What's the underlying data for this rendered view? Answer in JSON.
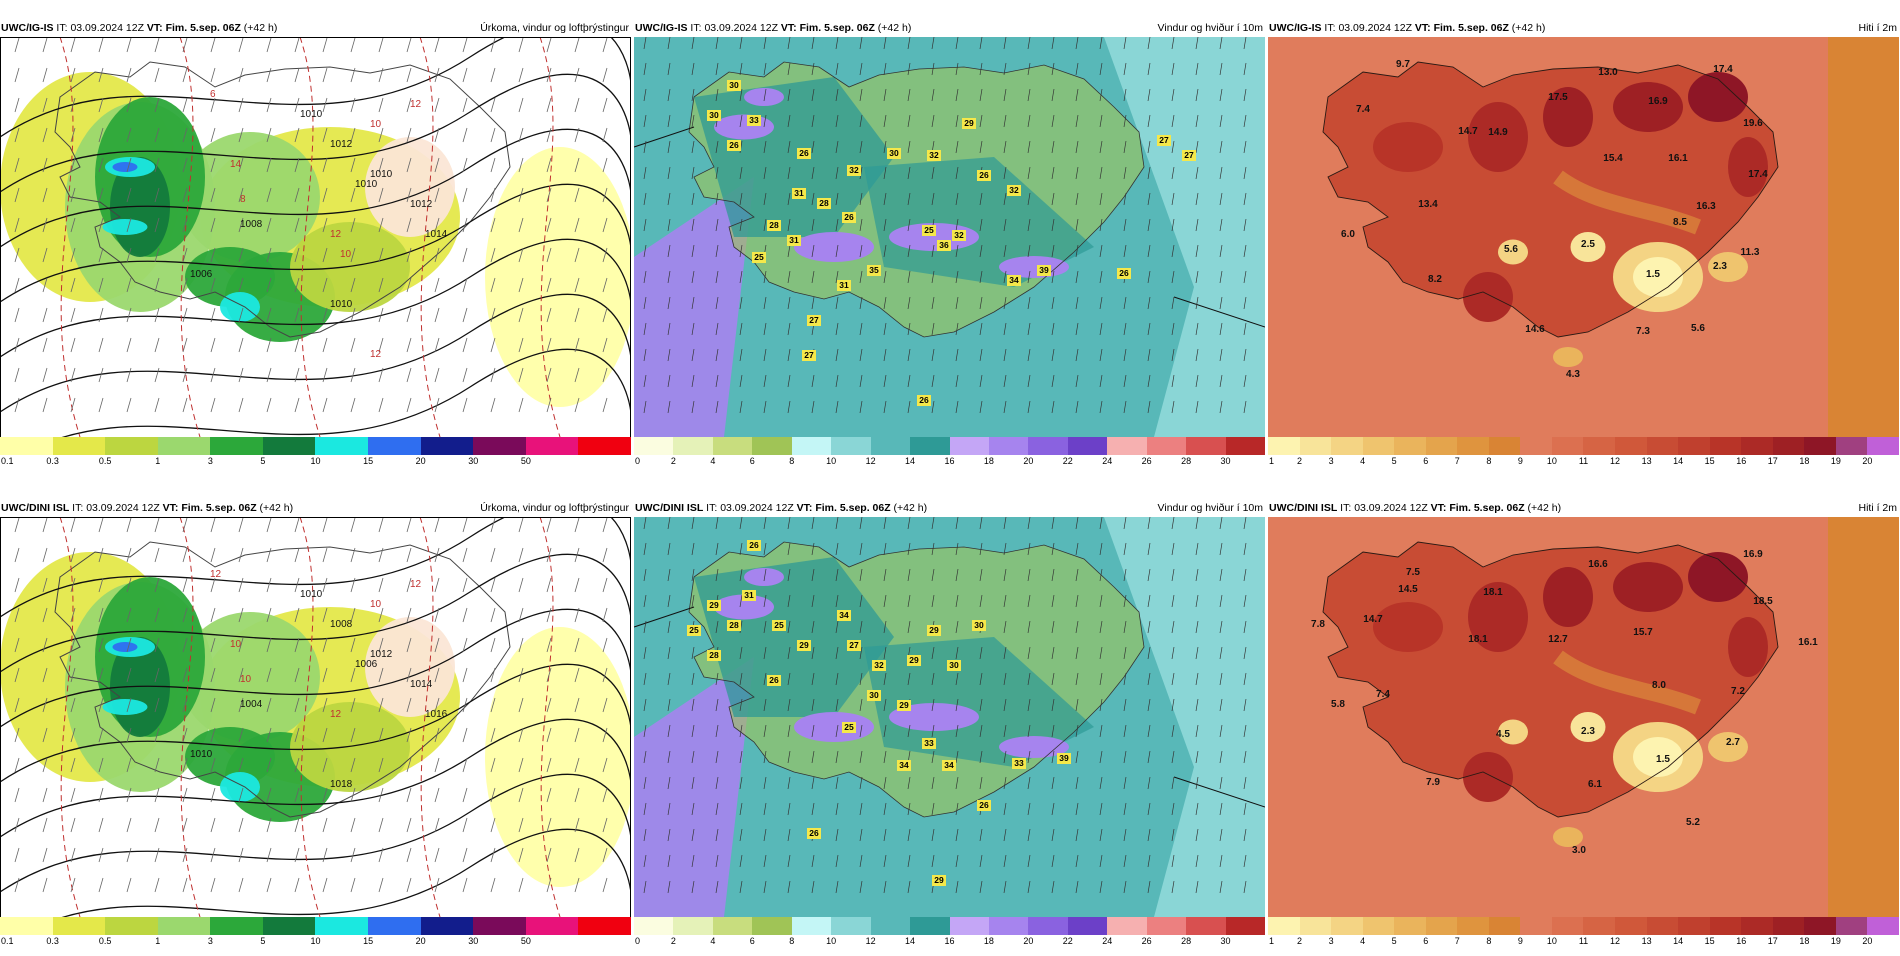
{
  "panels": [
    {
      "id": "p1",
      "model": "UWC/IG-IS",
      "it_label": "IT:",
      "it_value": "03.09.2024 12Z",
      "vt_label": "VT:",
      "vt_value": "Fim. 5.sep. 06Z",
      "lead": "(+42 h)",
      "variable": "Úrkoma, vindur og loftþrýstingur",
      "legend_ticks": [
        "0.1",
        "0.3",
        "0.5",
        "1",
        "3",
        "5",
        "10",
        "15",
        "20",
        "30",
        "50"
      ],
      "legend_colors": [
        "#ffffa8",
        "#e4e84a",
        "#bcd640",
        "#9bd86e",
        "#2ca83a",
        "#137a3c",
        "#1be8e0",
        "#2f6ef0",
        "#121d8c",
        "#7a0a5a",
        "#e8127a",
        "#f00010"
      ],
      "map_labels": [
        "1010",
        "1012",
        "1010",
        "1008",
        "1006",
        "1010",
        "1012",
        "1014",
        "1010",
        "12",
        "10",
        "8",
        "6",
        "12",
        "10",
        "14",
        "12"
      ],
      "map_bg": "#ffffff"
    },
    {
      "id": "p2",
      "model": "UWC/IG-IS",
      "it_label": "IT:",
      "it_value": "03.09.2024 12Z",
      "vt_label": "VT:",
      "vt_value": "Fim. 5.sep. 06Z",
      "lead": "(+42 h)",
      "variable": "Vindur og hviður í 10m",
      "legend_ticks": [
        "0",
        "2",
        "4",
        "6",
        "8",
        "10",
        "12",
        "14",
        "16",
        "18",
        "20",
        "22",
        "24",
        "26",
        "28",
        "30"
      ],
      "legend_colors": [
        "#fbfde0",
        "#e5f2b8",
        "#c8dd7e",
        "#a0c456",
        "#c4f6f6",
        "#8ad6d6",
        "#58b8b8",
        "#2e9a96",
        "#c4a6f6",
        "#a684ee",
        "#8a62e0",
        "#6c40c8",
        "#f6b0b0",
        "#ec8080",
        "#d85050",
        "#b82828"
      ],
      "map_labels": [
        "30",
        "33",
        "30",
        "26",
        "26",
        "32",
        "30",
        "32",
        "29",
        "31",
        "28",
        "26",
        "26",
        "32",
        "31",
        "28",
        "25",
        "32",
        "36",
        "25",
        "35",
        "31",
        "34",
        "39",
        "26",
        "27",
        "27",
        "27",
        "26",
        "27"
      ],
      "map_bg": "#5fbcb8"
    },
    {
      "id": "p3",
      "model": "UWC/IG-IS",
      "it_label": "IT:",
      "it_value": "03.09.2024 12Z",
      "vt_label": "VT:",
      "vt_value": "Fim. 5.sep. 06Z",
      "lead": "(+42 h)",
      "variable": "Hiti í 2m",
      "legend_ticks": [
        "1",
        "2",
        "3",
        "4",
        "5",
        "6",
        "7",
        "8",
        "9",
        "10",
        "11",
        "12",
        "13",
        "14",
        "15",
        "16",
        "17",
        "18",
        "19",
        "20"
      ],
      "legend_colors": [
        "#fdf3b0",
        "#f8e49a",
        "#f4d484",
        "#efc46e",
        "#eab45c",
        "#e4a44c",
        "#df943e",
        "#d98434",
        "#e07c5c",
        "#dc7050",
        "#d66444",
        "#d0583a",
        "#c84c34",
        "#c0402e",
        "#b83428",
        "#ac2a26",
        "#9e2024",
        "#8e1626",
        "#a04080",
        "#c060d8"
      ],
      "map_labels": [
        "9.7",
        "7.4",
        "14.7",
        "14.9",
        "17.5",
        "13.0",
        "16.9",
        "17.4",
        "19.6",
        "15.4",
        "16.1",
        "17.4",
        "13.4",
        "16.3",
        "6.0",
        "8.5",
        "5.6",
        "2.5",
        "1.5",
        "2.3",
        "11.3",
        "8.2",
        "14.6",
        "7.3",
        "5.6",
        "4.3"
      ],
      "map_bg": "#e0805c"
    },
    {
      "id": "p4",
      "model": "UWC/DINI ISL",
      "it_label": "IT:",
      "it_value": "03.09.2024 12Z",
      "vt_label": "VT:",
      "vt_value": "Fim. 5.sep. 06Z",
      "lead": "(+42 h)",
      "variable": "Úrkoma, vindur og loftþrýstingur",
      "legend_ticks": [
        "0.1",
        "0.3",
        "0.5",
        "1",
        "3",
        "5",
        "10",
        "15",
        "20",
        "30",
        "50"
      ],
      "legend_colors": [
        "#ffffa8",
        "#e4e84a",
        "#bcd640",
        "#9bd86e",
        "#2ca83a",
        "#137a3c",
        "#1be8e0",
        "#2f6ef0",
        "#121d8c",
        "#7a0a5a",
        "#e8127a",
        "#f00010"
      ],
      "map_labels": [
        "1010",
        "1008",
        "1006",
        "1004",
        "1010",
        "1012",
        "1014",
        "1016",
        "1018",
        "12",
        "10",
        "10",
        "12",
        "12",
        "10"
      ],
      "map_bg": "#ffffff"
    },
    {
      "id": "p5",
      "model": "UWC/DINI ISL",
      "it_label": "IT:",
      "it_value": "03.09.2024 12Z",
      "vt_label": "VT:",
      "vt_value": "Fim. 5.sep. 06Z",
      "lead": "(+42 h)",
      "variable": "Vindur og hviður í 10m",
      "legend_ticks": [
        "0",
        "2",
        "4",
        "6",
        "8",
        "10",
        "12",
        "14",
        "16",
        "18",
        "20",
        "22",
        "24",
        "26",
        "28",
        "30"
      ],
      "legend_colors": [
        "#fbfde0",
        "#e5f2b8",
        "#c8dd7e",
        "#a0c456",
        "#c4f6f6",
        "#8ad6d6",
        "#58b8b8",
        "#2e9a96",
        "#c4a6f6",
        "#a684ee",
        "#8a62e0",
        "#6c40c8",
        "#f6b0b0",
        "#ec8080",
        "#d85050",
        "#b82828"
      ],
      "map_labels": [
        "26",
        "29",
        "31",
        "28",
        "25",
        "25",
        "28",
        "34",
        "29",
        "26",
        "27",
        "32",
        "29",
        "30",
        "30",
        "29",
        "30",
        "29",
        "25",
        "33",
        "34",
        "34",
        "33",
        "39",
        "26",
        "26",
        "29"
      ],
      "map_bg": "#5fbcb8"
    },
    {
      "id": "p6",
      "model": "UWC/DINI ISL",
      "it_label": "IT:",
      "it_value": "03.09.2024 12Z",
      "vt_label": "VT:",
      "vt_value": "Fim. 5.sep. 06Z",
      "lead": "(+42 h)",
      "variable": "Hiti í 2m",
      "legend_ticks": [
        "1",
        "2",
        "3",
        "4",
        "5",
        "6",
        "7",
        "8",
        "9",
        "10",
        "11",
        "12",
        "13",
        "14",
        "15",
        "16",
        "17",
        "18",
        "19",
        "20"
      ],
      "legend_colors": [
        "#fdf3b0",
        "#f8e49a",
        "#f4d484",
        "#efc46e",
        "#eab45c",
        "#e4a44c",
        "#df943e",
        "#d98434",
        "#e07c5c",
        "#dc7050",
        "#d66444",
        "#d0583a",
        "#c84c34",
        "#c0402e",
        "#b83428",
        "#ac2a26",
        "#9e2024",
        "#8e1626",
        "#a04080",
        "#c060d8"
      ],
      "map_labels": [
        "7.5",
        "16.6",
        "16.9",
        "14.7",
        "14.5",
        "18.1",
        "18.5",
        "7.8",
        "18.1",
        "12.7",
        "15.7",
        "16.1",
        "7.4",
        "8.0",
        "7.2",
        "5.8",
        "4.5",
        "2.3",
        "1.5",
        "2.7",
        "7.9",
        "6.1",
        "5.2",
        "3.0"
      ],
      "map_bg": "#e0805c"
    }
  ]
}
